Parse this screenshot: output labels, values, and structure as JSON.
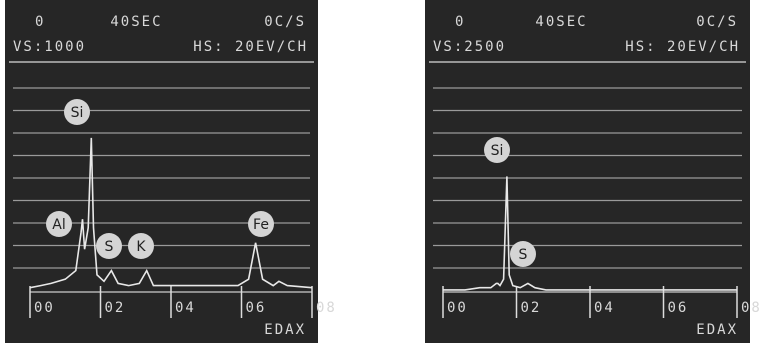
{
  "chart_data": [
    {
      "type": "line",
      "header": [
        "0",
        "40SEC",
        "0C/S"
      ],
      "scale": [
        "VS:1000",
        "HS: 20EV/CH"
      ],
      "footer": "EDAX",
      "annotations": [
        "Si",
        "Al",
        "S",
        "K",
        "Fe"
      ],
      "x": [
        0,
        0.3,
        0.6,
        1.0,
        1.3,
        1.45,
        1.49,
        1.55,
        1.65,
        1.74,
        1.8,
        1.9,
        2.1,
        2.31,
        2.5,
        2.8,
        3.1,
        3.31,
        3.5,
        4,
        5,
        5.9,
        6.2,
        6.4,
        6.6,
        6.9,
        7.06,
        7.3,
        8
      ],
      "values": [
        2,
        3,
        4,
        6,
        10,
        28,
        34,
        20,
        30,
        72,
        30,
        8,
        5,
        10,
        4,
        3,
        4,
        10,
        3,
        3,
        3,
        3,
        6,
        23,
        6,
        3,
        5,
        3,
        2
      ],
      "color": "#e8e8e8",
      "xlim": [
        0,
        8
      ],
      "ylim": [
        0,
        100
      ],
      "xticks": [
        {
          "value": 0,
          "label": "00"
        },
        {
          "value": 2,
          "label": "02"
        },
        {
          "value": 4,
          "label": "04"
        },
        {
          "value": 6,
          "label": "06"
        },
        {
          "value": 8,
          "label": "08"
        }
      ]
    },
    {
      "type": "line",
      "header": [
        "0",
        "40SEC",
        "0C/S"
      ],
      "scale": [
        "VS:2500",
        "HS: 20EV/CH"
      ],
      "footer": "EDAX",
      "annotations": [
        "Si",
        "S"
      ],
      "x": [
        0,
        0.3,
        0.6,
        1.0,
        1.3,
        1.45,
        1.49,
        1.55,
        1.65,
        1.74,
        1.8,
        1.9,
        2.1,
        2.31,
        2.5,
        2.8,
        3.1,
        3.31,
        3.5,
        4,
        5,
        5.9,
        6.2,
        6.4,
        6.6,
        6.9,
        7.06,
        7.3,
        8
      ],
      "values": [
        1,
        1,
        1,
        2,
        2,
        4,
        4,
        3,
        6,
        54,
        8,
        3,
        2,
        4,
        2,
        1,
        1,
        1,
        1,
        1,
        1,
        1,
        1,
        1,
        1,
        1,
        1,
        1,
        1
      ],
      "color": "#e8e8e8",
      "xlim": [
        0,
        8
      ],
      "ylim": [
        0,
        100
      ],
      "xticks": [
        {
          "value": 0,
          "label": "00"
        },
        {
          "value": 2,
          "label": "02"
        },
        {
          "value": 4,
          "label": "04"
        },
        {
          "value": 6,
          "label": "06"
        },
        {
          "value": 8,
          "label": "08"
        }
      ]
    }
  ]
}
